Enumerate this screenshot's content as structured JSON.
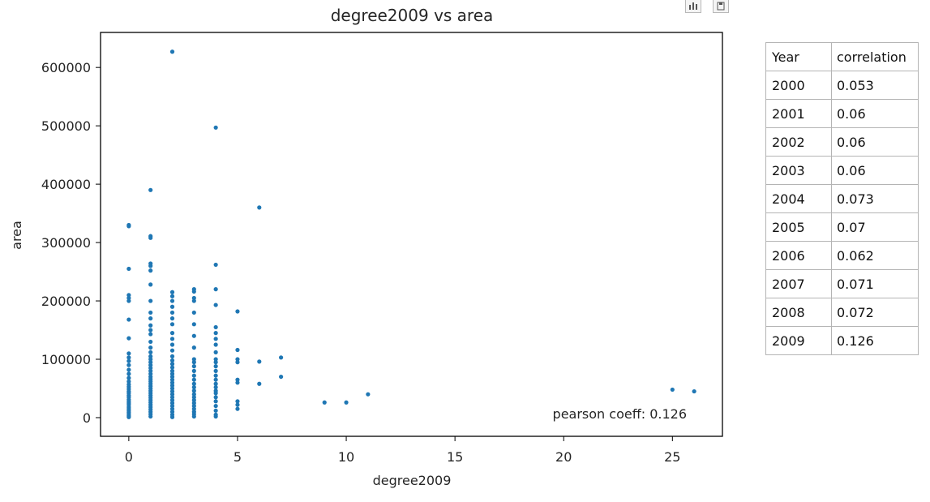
{
  "toolbar": {
    "bar_icon": "bar-chart-icon",
    "save_icon": "save-icon"
  },
  "chart_data": {
    "type": "scatter",
    "title": "degree2009 vs area",
    "xlabel": "degree2009",
    "ylabel": "area",
    "xlim": [
      -1.3,
      27.3
    ],
    "ylim": [
      -32000,
      660000
    ],
    "xticks": [
      0,
      5,
      10,
      15,
      20,
      25
    ],
    "yticks": [
      0,
      100000,
      200000,
      300000,
      400000,
      500000,
      600000
    ],
    "xtick_labels": [
      "0",
      "5",
      "10",
      "15",
      "20",
      "25"
    ],
    "ytick_labels": [
      "0",
      "100000",
      "200000",
      "300000",
      "400000",
      "500000",
      "600000"
    ],
    "grid": false,
    "marker_color": "#1f77b4",
    "annotation": "pearson coeff: 0.126",
    "points": [
      [
        0,
        330000
      ],
      [
        0,
        328000
      ],
      [
        0,
        255000
      ],
      [
        0,
        210000
      ],
      [
        0,
        205000
      ],
      [
        0,
        200000
      ],
      [
        0,
        168000
      ],
      [
        0,
        136000
      ],
      [
        0,
        110000
      ],
      [
        0,
        103000
      ],
      [
        0,
        97000
      ],
      [
        0,
        90000
      ],
      [
        0,
        82000
      ],
      [
        0,
        75000
      ],
      [
        0,
        68000
      ],
      [
        0,
        62000
      ],
      [
        0,
        57000
      ],
      [
        0,
        53000
      ],
      [
        0,
        49000
      ],
      [
        0,
        45000
      ],
      [
        0,
        42000
      ],
      [
        0,
        38000
      ],
      [
        0,
        35000
      ],
      [
        0,
        31000
      ],
      [
        0,
        28000
      ],
      [
        0,
        25000
      ],
      [
        0,
        22000
      ],
      [
        0,
        18000
      ],
      [
        0,
        15000
      ],
      [
        0,
        12000
      ],
      [
        0,
        9000
      ],
      [
        0,
        6000
      ],
      [
        0,
        3000
      ],
      [
        0,
        1000
      ],
      [
        1,
        390000
      ],
      [
        1,
        311000
      ],
      [
        1,
        308000
      ],
      [
        1,
        264000
      ],
      [
        1,
        260000
      ],
      [
        1,
        252000
      ],
      [
        1,
        228000
      ],
      [
        1,
        200000
      ],
      [
        1,
        180000
      ],
      [
        1,
        170000
      ],
      [
        1,
        158000
      ],
      [
        1,
        150000
      ],
      [
        1,
        143000
      ],
      [
        1,
        130000
      ],
      [
        1,
        120000
      ],
      [
        1,
        112000
      ],
      [
        1,
        105000
      ],
      [
        1,
        100000
      ],
      [
        1,
        95000
      ],
      [
        1,
        90000
      ],
      [
        1,
        85000
      ],
      [
        1,
        80000
      ],
      [
        1,
        75000
      ],
      [
        1,
        70000
      ],
      [
        1,
        66000
      ],
      [
        1,
        62000
      ],
      [
        1,
        58000
      ],
      [
        1,
        54000
      ],
      [
        1,
        50000
      ],
      [
        1,
        46000
      ],
      [
        1,
        42000
      ],
      [
        1,
        38000
      ],
      [
        1,
        34000
      ],
      [
        1,
        30000
      ],
      [
        1,
        26000
      ],
      [
        1,
        22000
      ],
      [
        1,
        18000
      ],
      [
        1,
        14000
      ],
      [
        1,
        10000
      ],
      [
        1,
        6000
      ],
      [
        1,
        2000
      ],
      [
        2,
        627000
      ],
      [
        2,
        215000
      ],
      [
        2,
        208000
      ],
      [
        2,
        200000
      ],
      [
        2,
        190000
      ],
      [
        2,
        180000
      ],
      [
        2,
        170000
      ],
      [
        2,
        160000
      ],
      [
        2,
        145000
      ],
      [
        2,
        135000
      ],
      [
        2,
        125000
      ],
      [
        2,
        115000
      ],
      [
        2,
        105000
      ],
      [
        2,
        98000
      ],
      [
        2,
        92000
      ],
      [
        2,
        86000
      ],
      [
        2,
        80000
      ],
      [
        2,
        75000
      ],
      [
        2,
        70000
      ],
      [
        2,
        65000
      ],
      [
        2,
        60000
      ],
      [
        2,
        55000
      ],
      [
        2,
        50000
      ],
      [
        2,
        45000
      ],
      [
        2,
        40000
      ],
      [
        2,
        35000
      ],
      [
        2,
        30000
      ],
      [
        2,
        25000
      ],
      [
        2,
        20000
      ],
      [
        2,
        15000
      ],
      [
        2,
        10000
      ],
      [
        2,
        5000
      ],
      [
        2,
        1000
      ],
      [
        3,
        220000
      ],
      [
        3,
        216000
      ],
      [
        3,
        205000
      ],
      [
        3,
        200000
      ],
      [
        3,
        180000
      ],
      [
        3,
        160000
      ],
      [
        3,
        140000
      ],
      [
        3,
        120000
      ],
      [
        3,
        100000
      ],
      [
        3,
        95000
      ],
      [
        3,
        88000
      ],
      [
        3,
        80000
      ],
      [
        3,
        72000
      ],
      [
        3,
        65000
      ],
      [
        3,
        58000
      ],
      [
        3,
        52000
      ],
      [
        3,
        46000
      ],
      [
        3,
        40000
      ],
      [
        3,
        35000
      ],
      [
        3,
        30000
      ],
      [
        3,
        25000
      ],
      [
        3,
        20000
      ],
      [
        3,
        15000
      ],
      [
        3,
        10000
      ],
      [
        3,
        6000
      ],
      [
        3,
        2000
      ],
      [
        4,
        497000
      ],
      [
        4,
        262000
      ],
      [
        4,
        220000
      ],
      [
        4,
        193000
      ],
      [
        4,
        155000
      ],
      [
        4,
        145000
      ],
      [
        4,
        135000
      ],
      [
        4,
        125000
      ],
      [
        4,
        112000
      ],
      [
        4,
        100000
      ],
      [
        4,
        95000
      ],
      [
        4,
        88000
      ],
      [
        4,
        80000
      ],
      [
        4,
        72000
      ],
      [
        4,
        65000
      ],
      [
        4,
        58000
      ],
      [
        4,
        52000
      ],
      [
        4,
        46000
      ],
      [
        4,
        42000
      ],
      [
        4,
        35000
      ],
      [
        4,
        28000
      ],
      [
        4,
        20000
      ],
      [
        4,
        12000
      ],
      [
        4,
        5000
      ],
      [
        4,
        2000
      ],
      [
        5,
        182000
      ],
      [
        5,
        116000
      ],
      [
        5,
        100000
      ],
      [
        5,
        95000
      ],
      [
        5,
        65000
      ],
      [
        5,
        60000
      ],
      [
        5,
        28000
      ],
      [
        5,
        22000
      ],
      [
        5,
        15000
      ],
      [
        6,
        360000
      ],
      [
        6,
        96000
      ],
      [
        6,
        58000
      ],
      [
        7,
        103000
      ],
      [
        7,
        70000
      ],
      [
        9,
        26000
      ],
      [
        10,
        26000
      ],
      [
        11,
        40000
      ],
      [
        25,
        48000
      ],
      [
        26,
        45000
      ]
    ]
  },
  "table": {
    "headers": [
      "Year",
      "correlation"
    ],
    "rows": [
      [
        "2000",
        "0.053"
      ],
      [
        "2001",
        "0.06"
      ],
      [
        "2002",
        "0.06"
      ],
      [
        "2003",
        "0.06"
      ],
      [
        "2004",
        "0.073"
      ],
      [
        "2005",
        "0.07"
      ],
      [
        "2006",
        "0.062"
      ],
      [
        "2007",
        "0.071"
      ],
      [
        "2008",
        "0.072"
      ],
      [
        "2009",
        "0.126"
      ]
    ]
  }
}
